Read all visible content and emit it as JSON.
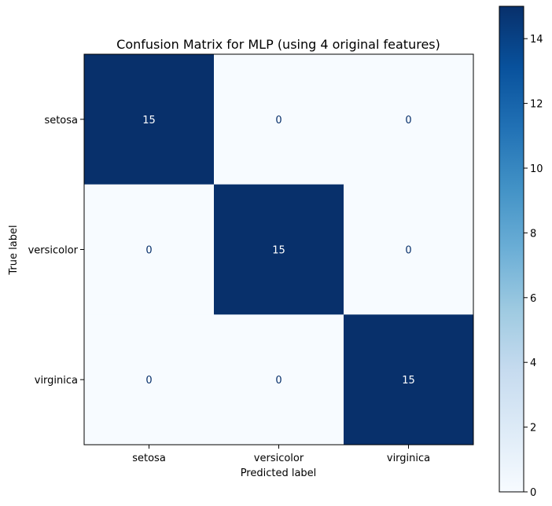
{
  "chart_data": {
    "type": "heatmap",
    "title": "Confusion Matrix for MLP (using 4 original features)",
    "xlabel": "Predicted label",
    "ylabel": "True label",
    "x_categories": [
      "setosa",
      "versicolor",
      "virginica"
    ],
    "y_categories": [
      "setosa",
      "versicolor",
      "virginica"
    ],
    "values": [
      [
        15,
        0,
        0
      ],
      [
        0,
        15,
        0
      ],
      [
        0,
        0,
        15
      ]
    ],
    "colormap": "Blues",
    "color_low": "#f7fbff",
    "color_high": "#08306b",
    "colorbar": {
      "range": [
        0,
        15
      ],
      "ticks": [
        0,
        2,
        4,
        6,
        8,
        10,
        12,
        14
      ]
    },
    "grid": false
  }
}
